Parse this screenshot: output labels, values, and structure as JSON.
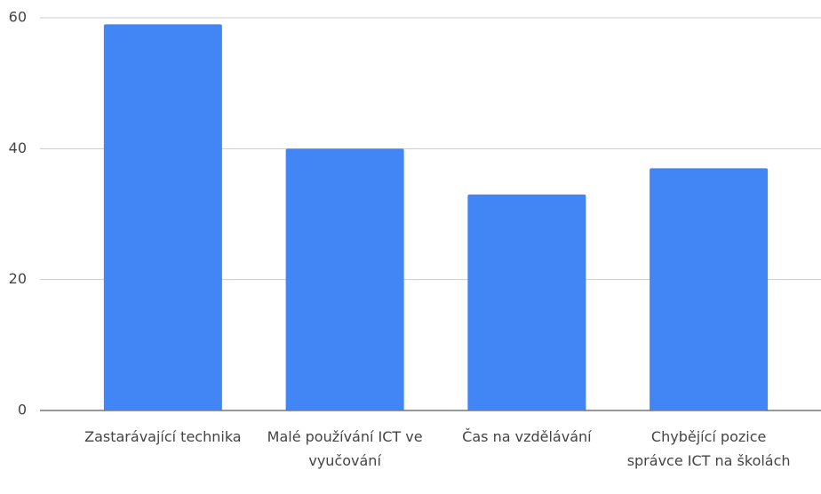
{
  "chart_data": {
    "type": "bar",
    "categories": [
      "Zastarávající technika",
      "Malé používání ICT ve vyučování",
      "Čas na vzdělávání",
      "Chybějící pozice správce ICT na školách"
    ],
    "values": [
      59,
      40,
      33,
      37
    ],
    "color": "#4285f4",
    "ylim": [
      0,
      60
    ],
    "yticks": [
      0,
      20,
      40,
      60
    ],
    "grid": true
  }
}
